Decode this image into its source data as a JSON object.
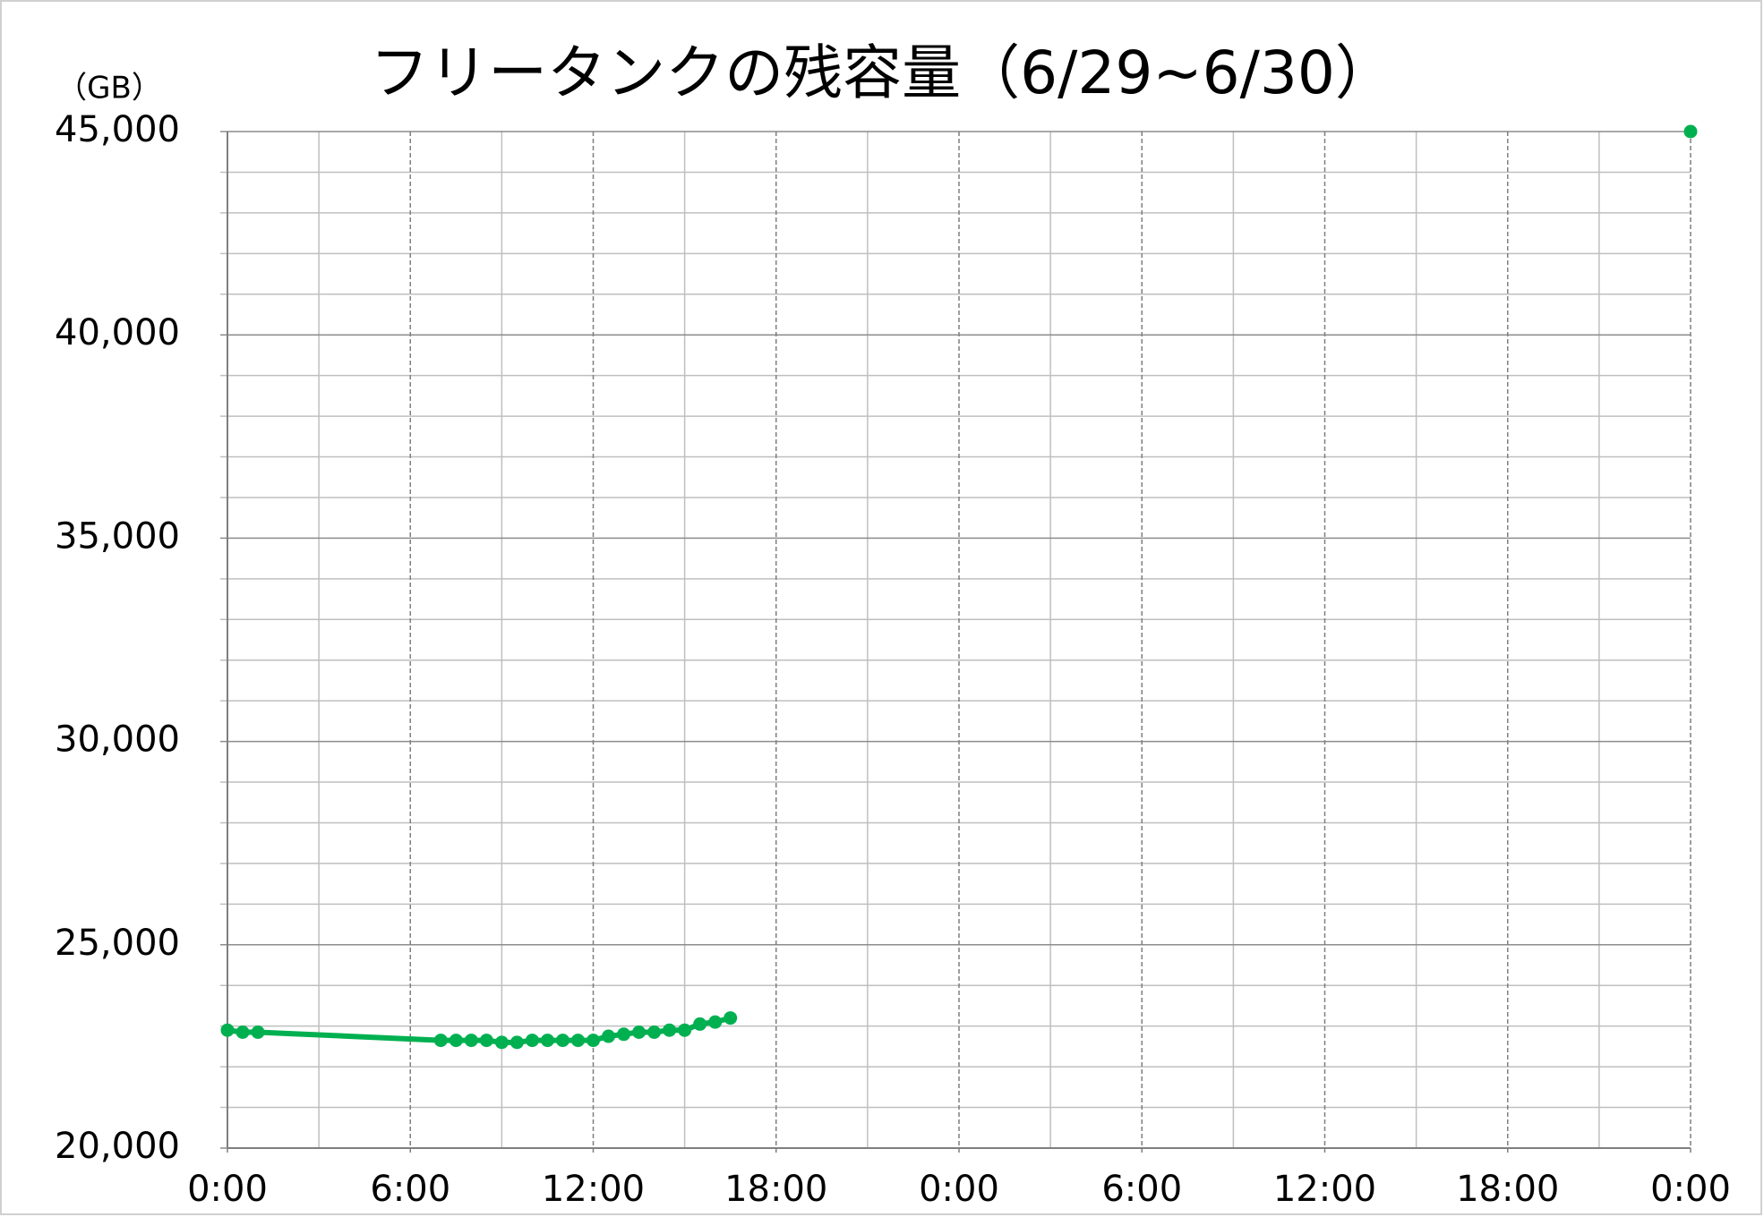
{
  "chart_data": {
    "type": "line",
    "title": "フリータンクの残容量（6/29~6/30）",
    "y_unit": "（GB）",
    "xlim": [
      0,
      48
    ],
    "xticks": [
      {
        "value": 0,
        "label": "0:00"
      },
      {
        "value": 6,
        "label": "6:00"
      },
      {
        "value": 12,
        "label": "12:00"
      },
      {
        "value": 18,
        "label": "18:00"
      },
      {
        "value": 24,
        "label": "0:00"
      },
      {
        "value": 30,
        "label": "6:00"
      },
      {
        "value": 36,
        "label": "12:00"
      },
      {
        "value": 42,
        "label": "18:00"
      },
      {
        "value": 48,
        "label": "0:00"
      }
    ],
    "x_minor_ticks": [
      3,
      9,
      15,
      21,
      27,
      33,
      39,
      45
    ],
    "ylim": [
      20000,
      45000
    ],
    "yticks": [
      {
        "value": 20000,
        "label": "20,000"
      },
      {
        "value": 25000,
        "label": "25,000"
      },
      {
        "value": 30000,
        "label": "30,000"
      },
      {
        "value": 35000,
        "label": "35,000"
      },
      {
        "value": 40000,
        "label": "40,000"
      },
      {
        "value": 45000,
        "label": "45,000"
      }
    ],
    "y_minor_ticks": [
      21000,
      22000,
      23000,
      24000,
      26000,
      27000,
      28000,
      29000,
      31000,
      32000,
      33000,
      34000,
      36000,
      37000,
      38000,
      39000,
      41000,
      42000,
      43000,
      44000
    ],
    "grid": true,
    "series": [
      {
        "color": "#00b050",
        "line": true,
        "x": [
          0,
          0.5,
          1,
          7,
          7.5,
          8,
          8.5,
          9,
          9.5,
          10,
          10.5,
          11,
          11.5,
          12,
          12.5,
          13,
          13.5,
          14,
          14.5,
          15,
          15.5,
          16,
          16.5
        ],
        "values": [
          22900,
          22850,
          22850,
          22650,
          22650,
          22650,
          22650,
          22600,
          22600,
          22650,
          22650,
          22650,
          22650,
          22650,
          22750,
          22800,
          22850,
          22850,
          22900,
          22900,
          23050,
          23100,
          23200
        ]
      },
      {
        "color": "#00b050",
        "line": false,
        "x": [
          48
        ],
        "values": [
          45000
        ]
      }
    ]
  }
}
